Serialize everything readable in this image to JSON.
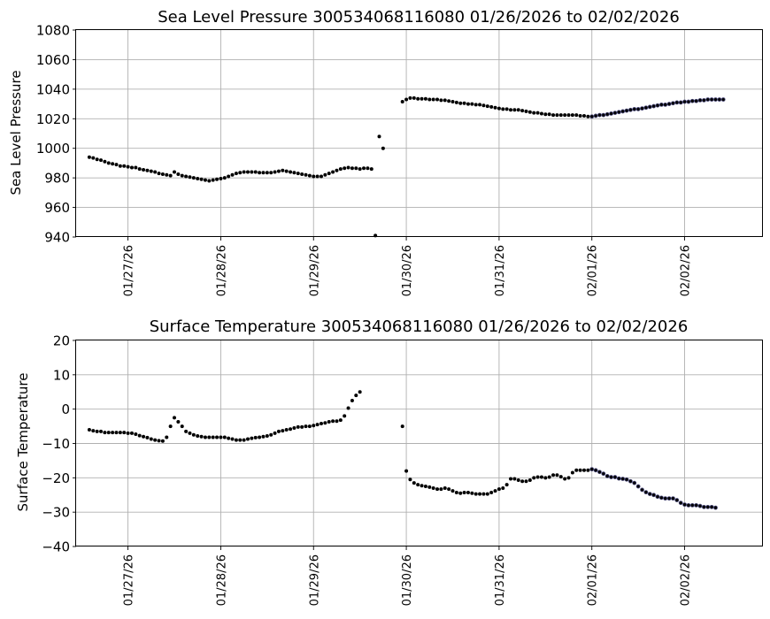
{
  "chart_data": [
    {
      "type": "scatter",
      "title": "Sea Level Pressure 300534068116080  01/26/2026 to 02/02/2026",
      "xlabel": "",
      "ylabel": "Sea Level Pressure",
      "ylim": [
        940,
        1080
      ],
      "yticks": [
        "940",
        "960",
        "980",
        "1000",
        "1020",
        "1040",
        "1060",
        "1080"
      ],
      "xlim": [
        "2026-01-26T10:35",
        "2026-02-02T20:15"
      ],
      "xticks": [
        "01/27/26",
        "01/28/26",
        "01/29/26",
        "01/30/26",
        "01/31/26",
        "02/01/26",
        "02/02/26"
      ],
      "grid": true,
      "marker_color": "#000000",
      "late_marker_edge_color": "#4b4a7a",
      "x_step_hours": 1,
      "segments": [
        {
          "start": "2026-01-26T14:00",
          "values": [
            994,
            993.5,
            992.5,
            992,
            991,
            990,
            989.5,
            989,
            988,
            988,
            987.5,
            987,
            987,
            986,
            985.5,
            985,
            984.5,
            984,
            983,
            982.5,
            982,
            981.5,
            984,
            982.5,
            981.5,
            981,
            980.5,
            980,
            979.5,
            979,
            978.5,
            978,
            978.5,
            979,
            979.5,
            980,
            981,
            982,
            983,
            983.5,
            984,
            984,
            984,
            984,
            983.5,
            983.5,
            983.5,
            983.5,
            984,
            984.5,
            985,
            984.5,
            984,
            983.5,
            983,
            982.5,
            982,
            981.5,
            981,
            981,
            981,
            982,
            983,
            984,
            985,
            986,
            986.5,
            987,
            986.5,
            986.5,
            986,
            986.5,
            986.5,
            986,
            941,
            1008,
            1000
          ]
        },
        {
          "start": "2026-01-29T23:00",
          "values": [
            1031.5,
            1033,
            1034,
            1034,
            1033.5,
            1033.5,
            1033.5,
            1033,
            1033,
            1033,
            1032.5,
            1032.5,
            1032,
            1031.5,
            1031,
            1030.5,
            1030.5,
            1030,
            1030,
            1029.5,
            1029.5,
            1029,
            1028.5,
            1028,
            1027.5,
            1027,
            1026.5,
            1026.5,
            1026,
            1026,
            1026,
            1025.5,
            1025,
            1024.5,
            1024,
            1024,
            1023.5,
            1023,
            1023,
            1022.5,
            1022.5,
            1022.5,
            1022.5,
            1022.5,
            1022.5,
            1022.5,
            1022,
            1022,
            1021.5,
            1021.5,
            1022,
            1022.5,
            1022.5,
            1023,
            1023.5,
            1024,
            1024.5,
            1025,
            1025.5,
            1026,
            1026.5,
            1026.5,
            1027,
            1027.5,
            1028,
            1028.5,
            1029,
            1029.5,
            1029.5,
            1030,
            1030.5,
            1031,
            1031,
            1031.5,
            1031.5,
            1032,
            1032,
            1032.5,
            1032.5,
            1033,
            1033,
            1033,
            1033,
            1033
          ]
        }
      ]
    },
    {
      "type": "scatter",
      "title": "Surface Temperature 300534068116080  01/26/2026 to 02/02/2026",
      "xlabel": "",
      "ylabel": "Surface Temperature",
      "ylim": [
        -40,
        20
      ],
      "yticks": [
        "−40",
        "−30",
        "−20",
        "−10",
        "0",
        "10",
        "20"
      ],
      "xlim": [
        "2026-01-26T10:35",
        "2026-02-02T20:15"
      ],
      "xticks": [
        "01/27/26",
        "01/28/26",
        "01/29/26",
        "01/30/26",
        "01/31/26",
        "02/01/26",
        "02/02/26"
      ],
      "grid": true,
      "marker_color": "#000000",
      "late_marker_edge_color": "#4b4a7a",
      "x_step_hours": 1,
      "segments": [
        {
          "start": "2026-01-26T14:00",
          "values": [
            -6,
            -6.3,
            -6.5,
            -6.5,
            -6.8,
            -6.8,
            -6.8,
            -6.8,
            -6.8,
            -6.8,
            -7,
            -7,
            -7.3,
            -7.7,
            -8,
            -8.3,
            -8.7,
            -9,
            -9.2,
            -9.3,
            -8.2,
            -5,
            -2.5,
            -3.7,
            -5,
            -6.5,
            -7,
            -7.5,
            -7.8,
            -8,
            -8.2,
            -8.2,
            -8.2,
            -8.2,
            -8.2,
            -8.2,
            -8.5,
            -8.7,
            -9,
            -9,
            -9,
            -8.7,
            -8.5,
            -8.3,
            -8.2,
            -8,
            -7.8,
            -7.5,
            -7,
            -6.5,
            -6.3,
            -6,
            -5.8,
            -5.5,
            -5.2,
            -5.2,
            -5,
            -5,
            -4.8,
            -4.5,
            -4.2,
            -4,
            -3.7,
            -3.5,
            -3.5,
            -3.2,
            -2,
            0.3,
            2.5,
            4,
            5
          ]
        },
        {
          "start": "2026-01-29T23:00",
          "values": [
            -5,
            -18,
            -20.5,
            -21.5,
            -22,
            -22.3,
            -22.5,
            -22.7,
            -23,
            -23.3,
            -23.3,
            -23,
            -23.3,
            -23.8,
            -24.3,
            -24.5,
            -24.3,
            -24.3,
            -24.5,
            -24.7,
            -24.7,
            -24.7,
            -24.7,
            -24.3,
            -23.8,
            -23.3,
            -23,
            -22,
            -20.3,
            -20.3,
            -20.7,
            -21,
            -21,
            -20.7,
            -20,
            -19.8,
            -19.8,
            -20,
            -19.8,
            -19.2,
            -19.2,
            -19.7,
            -20.3,
            -20,
            -18.5,
            -17.8,
            -17.8,
            -17.8,
            -17.8,
            -17.5,
            -17.8,
            -18.3,
            -18.8,
            -19.5,
            -19.8,
            -19.8,
            -20.2,
            -20.3,
            -20.5,
            -21,
            -21.5,
            -22.5,
            -23.5,
            -24.2,
            -24.7,
            -25,
            -25.5,
            -25.8,
            -26,
            -26,
            -26,
            -26.5,
            -27.3,
            -27.8,
            -28,
            -28,
            -28,
            -28.2,
            -28.5,
            -28.5,
            -28.5,
            -28.7
          ]
        }
      ]
    }
  ]
}
